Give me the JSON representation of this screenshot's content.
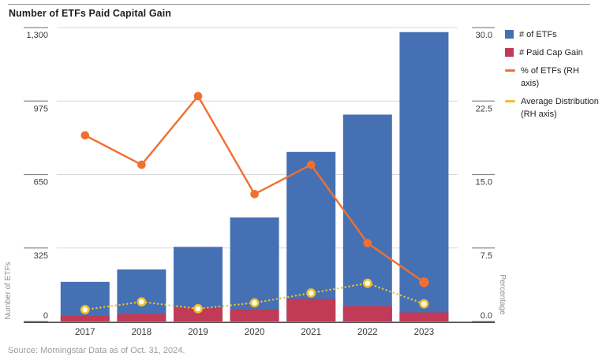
{
  "title": "Number of ETFs Paid Capital Gain",
  "source": "Source: Morningstar Data as of Oct. 31, 2024.",
  "legend": {
    "items": [
      {
        "label": "# of ETFs",
        "type": "square",
        "color": "#4571b4"
      },
      {
        "label": "# Paid Cap Gain",
        "type": "square",
        "color": "#c13a56"
      },
      {
        "label": "% of ETFs (RH axis)",
        "type": "line",
        "color": "#f07030"
      },
      {
        "label": "Average Distribution (RH axis)",
        "type": "line",
        "color": "#efc02f"
      }
    ]
  },
  "colors": {
    "bar_blue": "#4571b4",
    "bar_crimson": "#c13a56",
    "line_orange": "#f07030",
    "line_gold": "#efc02f",
    "marker_fill": "#fffdf0",
    "grid": "#d8d8d8",
    "tick_line": "#8a8a8a",
    "axis_line": "#4d4d4d",
    "tick_text": "#3c3c3c",
    "axis_name_text": "#8f8f8f"
  },
  "chart_data": {
    "type": "bar",
    "subtype": "combo bar + line, dual axis",
    "title": "Number of ETFs Paid Capital Gain",
    "categories": [
      "2017",
      "2018",
      "2019",
      "2020",
      "2021",
      "2022",
      "2023"
    ],
    "series": [
      {
        "name": "# of ETFs",
        "type": "bar",
        "axis": "left",
        "values": [
          175,
          230,
          330,
          460,
          750,
          915,
          1280
        ]
      },
      {
        "name": "# Paid Cap Gain",
        "type": "bar",
        "axis": "left",
        "values": [
          25,
          33,
          62,
          52,
          100,
          68,
          40
        ]
      },
      {
        "name": "% of ETFs (RH axis)",
        "type": "line",
        "axis": "right",
        "values": [
          19,
          16,
          23,
          13,
          16,
          8,
          4
        ]
      },
      {
        "name": "Average Distribution (RH axis)",
        "type": "line-dotted",
        "axis": "right",
        "values": [
          1.2,
          2.0,
          1.3,
          1.9,
          2.9,
          3.9,
          1.8
        ]
      }
    ],
    "left_axis": {
      "label": "Number of ETFs",
      "min": 0,
      "max": 1300,
      "ticks": [
        {
          "label": "0",
          "v": 0
        },
        {
          "label": "325",
          "v": 325
        },
        {
          "label": "650",
          "v": 650
        },
        {
          "label": "975",
          "v": 975
        },
        {
          "label": "1,300",
          "v": 1300
        }
      ]
    },
    "right_axis": {
      "label": "Percentage",
      "min": 0,
      "max": 30,
      "ticks": [
        {
          "label": "0.0",
          "v": 0
        },
        {
          "label": "7.5",
          "v": 7.5
        },
        {
          "label": "15.0",
          "v": 15
        },
        {
          "label": "22.5",
          "v": 22.5
        },
        {
          "label": "30.0",
          "v": 30
        }
      ]
    },
    "grid": true,
    "legend_position": "right"
  }
}
